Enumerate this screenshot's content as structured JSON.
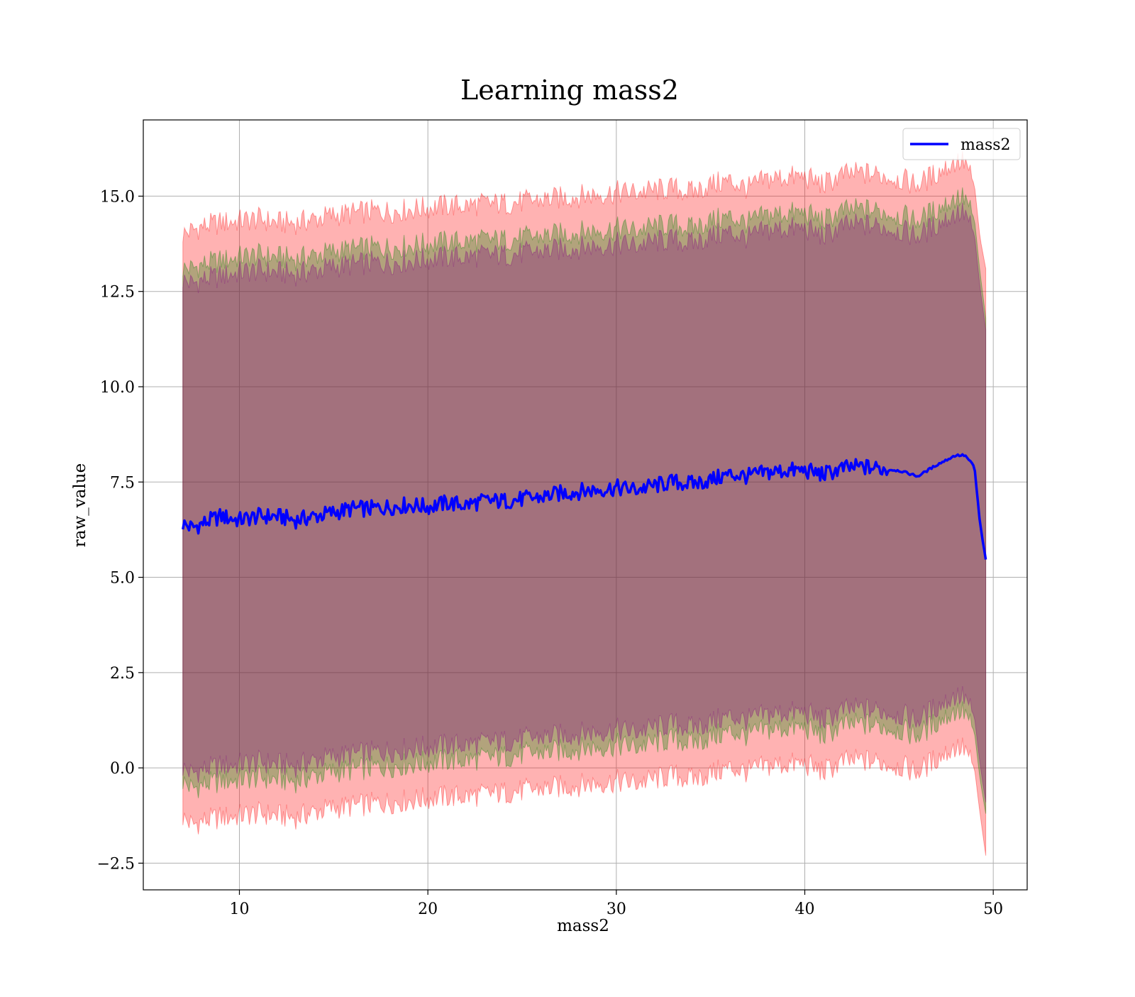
{
  "chart_data": {
    "type": "line",
    "title": "Learning mass2",
    "xlabel": "mass2",
    "ylabel": "raw_value",
    "xlim": [
      4.9,
      51.8
    ],
    "ylim": [
      -3.2,
      17.0
    ],
    "xticks": [
      10,
      20,
      30,
      40,
      50
    ],
    "xtick_labels": [
      "10",
      "20",
      "30",
      "40",
      "50"
    ],
    "yticks": [
      -2.5,
      0.0,
      2.5,
      5.0,
      7.5,
      10.0,
      12.5,
      15.0
    ],
    "ytick_labels": [
      "−2.5",
      "0.0",
      "2.5",
      "5.0",
      "7.5",
      "10.0",
      "12.5",
      "15.0"
    ],
    "grid": true,
    "legend_position": "top-right",
    "series": [
      {
        "name": "mass2",
        "color": "#0000ff",
        "x": [
          7.0,
          7.5,
          8,
          9,
          10,
          11,
          12,
          13,
          14,
          15,
          16,
          17,
          18,
          19,
          20,
          21,
          22,
          23,
          24,
          25,
          26,
          27,
          28,
          29,
          30,
          31,
          32,
          33,
          34,
          35,
          36,
          37,
          38,
          39,
          40,
          41,
          42,
          43,
          44,
          45,
          46,
          47,
          48,
          48.5,
          49.0,
          49.3,
          49.6
        ],
        "y": [
          6.4,
          6.3,
          6.4,
          6.6,
          6.5,
          6.6,
          6.6,
          6.5,
          6.6,
          6.7,
          6.8,
          6.8,
          6.85,
          6.9,
          6.85,
          6.95,
          6.9,
          7.0,
          7.0,
          7.05,
          7.1,
          7.2,
          7.25,
          7.3,
          7.35,
          7.3,
          7.4,
          7.5,
          7.45,
          7.55,
          7.7,
          7.65,
          7.75,
          7.8,
          7.8,
          7.7,
          7.85,
          7.9,
          7.85,
          7.8,
          7.65,
          7.95,
          8.2,
          8.2,
          7.9,
          6.4,
          5.45
        ]
      }
    ],
    "bands": [
      {
        "color": "#ff0000",
        "opacity": 0.3,
        "x": [
          7.0,
          7.5,
          8,
          9,
          10,
          11,
          12,
          13,
          14,
          15,
          16,
          17,
          18,
          19,
          20,
          21,
          22,
          23,
          24,
          25,
          26,
          27,
          28,
          29,
          30,
          31,
          32,
          33,
          34,
          35,
          36,
          37,
          38,
          39,
          40,
          41,
          42,
          43,
          44,
          45,
          46,
          47,
          48,
          48.5,
          49.0,
          49.3,
          49.6
        ],
        "upper": [
          14.0,
          14.1,
          14.2,
          14.3,
          14.35,
          14.4,
          14.3,
          14.3,
          14.4,
          14.5,
          14.55,
          14.6,
          14.6,
          14.65,
          14.7,
          14.75,
          14.75,
          14.8,
          14.8,
          14.85,
          14.9,
          14.95,
          15.0,
          15.05,
          15.1,
          15.1,
          15.15,
          15.2,
          15.1,
          15.3,
          15.4,
          15.2,
          15.45,
          15.5,
          15.5,
          15.3,
          15.55,
          15.6,
          15.55,
          15.45,
          15.3,
          15.6,
          15.9,
          15.9,
          15.3,
          13.9,
          13.1
        ],
        "lower": [
          -1.3,
          -1.5,
          -1.4,
          -1.3,
          -1.25,
          -1.2,
          -1.25,
          -1.3,
          -1.15,
          -1.05,
          -1.0,
          -0.95,
          -0.9,
          -0.85,
          -0.8,
          -0.75,
          -0.75,
          -0.7,
          -0.65,
          -0.6,
          -0.55,
          -0.5,
          -0.45,
          -0.4,
          -0.35,
          -0.4,
          -0.3,
          -0.2,
          -0.3,
          -0.15,
          0.0,
          -0.1,
          0.05,
          0.1,
          0.1,
          -0.1,
          0.15,
          0.2,
          0.15,
          0.05,
          -0.1,
          0.25,
          0.55,
          0.5,
          0.0,
          -1.2,
          -2.3
        ]
      },
      {
        "color": "#008000",
        "opacity": 0.3,
        "x": [
          7.0,
          7.5,
          8,
          9,
          10,
          11,
          12,
          13,
          14,
          15,
          16,
          17,
          18,
          19,
          20,
          21,
          22,
          23,
          24,
          25,
          26,
          27,
          28,
          29,
          30,
          31,
          32,
          33,
          34,
          35,
          36,
          37,
          38,
          39,
          40,
          41,
          42,
          43,
          44,
          45,
          46,
          47,
          48,
          48.5,
          49.0,
          49.3,
          49.6
        ],
        "upper": [
          13.1,
          13.1,
          13.2,
          13.3,
          13.4,
          13.45,
          13.4,
          13.35,
          13.45,
          13.55,
          13.6,
          13.65,
          13.65,
          13.7,
          13.75,
          13.8,
          13.8,
          13.85,
          13.85,
          13.9,
          13.95,
          14.0,
          14.05,
          14.1,
          14.15,
          14.1,
          14.2,
          14.25,
          14.15,
          14.35,
          14.45,
          14.3,
          14.5,
          14.55,
          14.55,
          14.35,
          14.6,
          14.65,
          14.6,
          14.5,
          14.35,
          14.65,
          14.95,
          14.95,
          14.4,
          13.0,
          11.8
        ],
        "lower": [
          -0.35,
          -0.55,
          -0.45,
          -0.35,
          -0.3,
          -0.25,
          -0.3,
          -0.35,
          -0.2,
          -0.1,
          -0.05,
          0.0,
          0.05,
          0.1,
          0.15,
          0.2,
          0.2,
          0.25,
          0.3,
          0.35,
          0.4,
          0.45,
          0.5,
          0.55,
          0.6,
          0.55,
          0.65,
          0.75,
          0.65,
          0.8,
          0.95,
          0.85,
          1.0,
          1.05,
          1.05,
          0.85,
          1.1,
          1.15,
          1.1,
          1.0,
          0.85,
          1.2,
          1.5,
          1.45,
          0.95,
          -0.3,
          -1.2
        ]
      },
      {
        "color": "#800080",
        "opacity": 0.3,
        "x": [
          7.0,
          7.5,
          8,
          9,
          10,
          11,
          12,
          13,
          14,
          15,
          16,
          17,
          18,
          19,
          20,
          21,
          22,
          23,
          24,
          25,
          26,
          27,
          28,
          29,
          30,
          31,
          32,
          33,
          34,
          35,
          36,
          37,
          38,
          39,
          40,
          41,
          42,
          43,
          44,
          45,
          46,
          47,
          48,
          48.5,
          49.0,
          49.3,
          49.6
        ],
        "upper": [
          12.8,
          12.7,
          12.8,
          12.9,
          13.0,
          13.05,
          13.0,
          12.95,
          13.05,
          13.15,
          13.2,
          13.25,
          13.25,
          13.3,
          13.35,
          13.4,
          13.4,
          13.45,
          13.45,
          13.5,
          13.55,
          13.6,
          13.65,
          13.7,
          13.75,
          13.7,
          13.8,
          13.85,
          13.75,
          13.95,
          14.05,
          13.9,
          14.1,
          14.15,
          14.15,
          13.95,
          14.2,
          14.25,
          14.2,
          14.1,
          13.95,
          14.25,
          14.55,
          14.55,
          14.0,
          12.6,
          11.5
        ],
        "lower": [
          0.0,
          -0.15,
          -0.05,
          0.05,
          0.1,
          0.15,
          0.1,
          0.05,
          0.2,
          0.3,
          0.35,
          0.4,
          0.45,
          0.5,
          0.55,
          0.6,
          0.6,
          0.65,
          0.7,
          0.75,
          0.8,
          0.85,
          0.9,
          0.95,
          1.0,
          0.95,
          1.05,
          1.15,
          1.05,
          1.2,
          1.35,
          1.25,
          1.4,
          1.45,
          1.45,
          1.25,
          1.5,
          1.55,
          1.5,
          1.4,
          1.25,
          1.6,
          1.9,
          1.85,
          1.35,
          0.1,
          -0.9
        ]
      }
    ]
  }
}
